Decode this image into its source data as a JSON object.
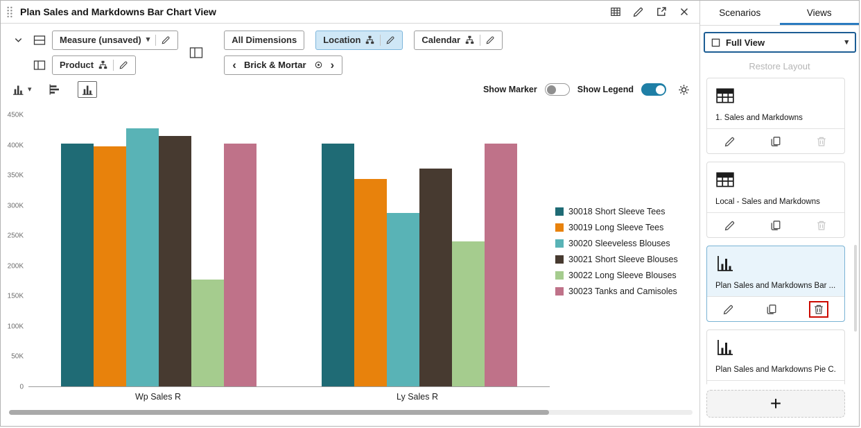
{
  "window": {
    "title": "Plan Sales and Markdowns Bar Chart View"
  },
  "toolbar": {
    "measure_label": "Measure (unsaved)",
    "product_label": "Product",
    "all_dimensions_label": "All Dimensions",
    "location_label": "Location",
    "calendar_label": "Calendar",
    "location_value": "Brick & Mortar"
  },
  "controls": {
    "show_marker_label": "Show Marker",
    "show_legend_label": "Show Legend"
  },
  "chart_data": {
    "type": "bar",
    "title": "Plan Sales and Markdowns Bar Chart View",
    "categories": [
      "Wp Sales R",
      "Ly Sales R"
    ],
    "series": [
      {
        "name": "30018 Short Sleeve Tees",
        "color": "#1f6b75",
        "values": [
          403000,
          403000
        ]
      },
      {
        "name": "30019 Long Sleeve Tees",
        "color": "#e8820c",
        "values": [
          398000,
          344000
        ]
      },
      {
        "name": "30020 Sleeveless Blouses",
        "color": "#59b3b6",
        "values": [
          428000,
          288000
        ]
      },
      {
        "name": "30021 Short Sleeve Blouses",
        "color": "#473a30",
        "values": [
          415000,
          361000
        ]
      },
      {
        "name": "30022 Long Sleeve Blouses",
        "color": "#a5cc8e",
        "values": [
          177000,
          241000
        ]
      },
      {
        "name": "30023 Tanks and Camisoles",
        "color": "#bf7289",
        "values": [
          403000,
          403000
        ]
      }
    ],
    "ylim": [
      0,
      450000
    ],
    "yticks": [
      0,
      50000,
      100000,
      150000,
      200000,
      250000,
      300000,
      350000,
      400000,
      450000
    ],
    "ytick_labels": [
      "0",
      "50K",
      "100K",
      "150K",
      "200K",
      "250K",
      "300K",
      "350K",
      "400K",
      "450K"
    ],
    "xlabel": "",
    "ylabel": "",
    "grid": false,
    "legend_position": "right"
  },
  "sidebar": {
    "tabs": [
      {
        "label": "Scenarios",
        "active": false
      },
      {
        "label": "Views",
        "active": true
      }
    ],
    "view_selector": {
      "value": "Full View"
    },
    "restore_layout_label": "Restore Layout",
    "cards": [
      {
        "icon": "table",
        "label": "1. Sales and Markdowns",
        "selected": false,
        "trash_enabled": false,
        "trash_highlighted": false
      },
      {
        "icon": "table",
        "label": "Local - Sales and Markdowns",
        "selected": false,
        "trash_enabled": false,
        "trash_highlighted": false
      },
      {
        "icon": "bar-chart",
        "label": "Plan Sales and Markdowns Bar ...",
        "selected": true,
        "trash_enabled": true,
        "trash_highlighted": true
      },
      {
        "icon": "bar-chart",
        "label": "Plan Sales and Markdowns Pie C...",
        "selected": false,
        "trash_enabled": false,
        "trash_highlighted": false
      }
    ],
    "add_button_label": "+"
  },
  "icons": {
    "caret_down": "▾",
    "chevron_left": "‹",
    "chevron_right": "›"
  },
  "colors": {
    "accent_blue": "#2a7bc0",
    "view_selector_border": "#1c5d94",
    "toggle_on": "#1f7fa6",
    "location_chip_bg": "#cfe7f6",
    "location_chip_border": "#7db6dc",
    "selected_card_bg": "#e9f4fb",
    "selected_card_border": "#7ab3d4",
    "highlight_red": "#cc0a00"
  }
}
